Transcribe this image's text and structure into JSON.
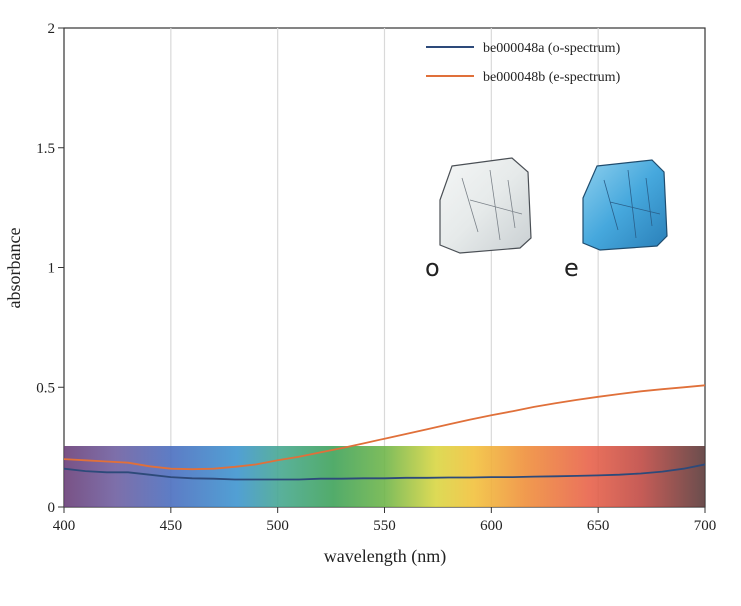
{
  "chart_data": {
    "type": "line",
    "title": "",
    "xlabel": "wavelength (nm)",
    "ylabel": "absorbance",
    "xlim": [
      400,
      700
    ],
    "ylim": [
      0,
      2
    ],
    "x_ticks": [
      "400",
      "450",
      "500",
      "550",
      "600",
      "650",
      "700"
    ],
    "y_ticks": [
      "0",
      "0.5",
      "1",
      "1.5",
      "2"
    ],
    "grid": "vertical",
    "legend_position": "top-right",
    "visible_spectrum_band": true,
    "series": [
      {
        "name": "be000048a (o-spectrum)",
        "color": "#2d4a7a",
        "x": [
          400,
          410,
          420,
          430,
          440,
          450,
          460,
          470,
          480,
          490,
          500,
          510,
          520,
          530,
          540,
          550,
          560,
          570,
          580,
          590,
          600,
          610,
          620,
          630,
          640,
          650,
          660,
          670,
          680,
          690,
          700
        ],
        "y": [
          0.16,
          0.15,
          0.145,
          0.145,
          0.135,
          0.125,
          0.12,
          0.118,
          0.115,
          0.115,
          0.115,
          0.115,
          0.118,
          0.118,
          0.12,
          0.12,
          0.122,
          0.122,
          0.123,
          0.123,
          0.125,
          0.125,
          0.127,
          0.128,
          0.13,
          0.132,
          0.135,
          0.14,
          0.148,
          0.16,
          0.178
        ]
      },
      {
        "name": "be000048b (e-spectrum)",
        "color": "#e0703a",
        "x": [
          400,
          410,
          420,
          430,
          440,
          450,
          460,
          470,
          480,
          490,
          500,
          510,
          520,
          530,
          540,
          550,
          560,
          570,
          580,
          590,
          600,
          610,
          620,
          630,
          640,
          650,
          660,
          670,
          680,
          690,
          700
        ],
        "y": [
          0.2,
          0.195,
          0.19,
          0.185,
          0.17,
          0.16,
          0.158,
          0.16,
          0.168,
          0.178,
          0.195,
          0.21,
          0.228,
          0.246,
          0.265,
          0.285,
          0.305,
          0.325,
          0.345,
          0.365,
          0.383,
          0.4,
          0.418,
          0.433,
          0.447,
          0.46,
          0.472,
          0.483,
          0.492,
          0.5,
          0.508
        ]
      }
    ],
    "annotations": [
      {
        "label": "o",
        "description": "crystal image (o-ray), pale/white"
      },
      {
        "label": "e",
        "description": "crystal image (e-ray), blue"
      }
    ]
  }
}
